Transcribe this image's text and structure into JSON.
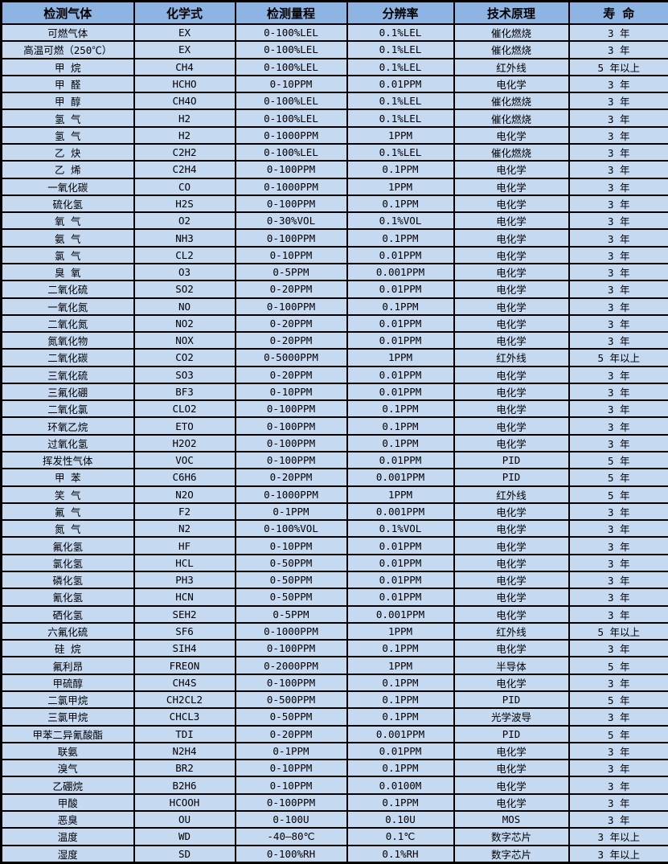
{
  "colors": {
    "header_bg": "#8db4e2",
    "row_bg": "#c5d9f1",
    "border": "#000000",
    "text": "#000000"
  },
  "table": {
    "headers": [
      "检测气体",
      "化学式",
      "检测量程",
      "分辨率",
      "技术原理",
      "寿 命"
    ],
    "rows": [
      {
        "gas": "可燃气体",
        "formula": "EX",
        "range": "0-100%LEL",
        "resolution": "0.1%LEL",
        "principle": "催化燃烧",
        "lifespan": "3 年"
      },
      {
        "gas": "高温可燃（250℃）",
        "formula": "EX",
        "range": "0-100%LEL",
        "resolution": "0.1%LEL",
        "principle": "催化燃烧",
        "lifespan": "3 年"
      },
      {
        "gas": "甲 烷",
        "formula": "CH4",
        "range": "0-100%LEL",
        "resolution": "0.1%LEL",
        "principle": "红外线",
        "lifespan": "5 年以上"
      },
      {
        "gas": "甲 醛",
        "formula": "HCHO",
        "range": "0-10PPM",
        "resolution": "0.01PPM",
        "principle": "电化学",
        "lifespan": "3 年"
      },
      {
        "gas": "甲 醇",
        "formula": "CH4O",
        "range": "0-100%LEL",
        "resolution": "0.1%LEL",
        "principle": "催化燃烧",
        "lifespan": "3 年"
      },
      {
        "gas": "氢 气",
        "formula": "H2",
        "range": "0-100%LEL",
        "resolution": "0.1%LEL",
        "principle": "催化燃烧",
        "lifespan": "3 年"
      },
      {
        "gas": "氢 气",
        "formula": "H2",
        "range": "0-1000PPM",
        "resolution": "1PPM",
        "principle": "电化学",
        "lifespan": "3 年"
      },
      {
        "gas": "乙 炔",
        "formula": "C2H2",
        "range": "0-100%LEL",
        "resolution": "0.1%LEL",
        "principle": "催化燃烧",
        "lifespan": "3 年"
      },
      {
        "gas": "乙 烯",
        "formula": "C2H4",
        "range": "0-100PPM",
        "resolution": "0.1PPM",
        "principle": "电化学",
        "lifespan": "3 年"
      },
      {
        "gas": "一氧化碳",
        "formula": "CO",
        "range": "0-1000PPM",
        "resolution": "1PPM",
        "principle": "电化学",
        "lifespan": "3 年"
      },
      {
        "gas": "硫化氢",
        "formula": "H2S",
        "range": "0-100PPM",
        "resolution": "0.1PPM",
        "principle": "电化学",
        "lifespan": "3 年"
      },
      {
        "gas": "氧 气",
        "formula": "O2",
        "range": "0-30%VOL",
        "resolution": "0.1%VOL",
        "principle": "电化学",
        "lifespan": "3 年"
      },
      {
        "gas": "氨 气",
        "formula": "NH3",
        "range": "0-100PPM",
        "resolution": "0.1PPM",
        "principle": "电化学",
        "lifespan": "3 年"
      },
      {
        "gas": "氯 气",
        "formula": "CL2",
        "range": "0-10PPM",
        "resolution": "0.01PPM",
        "principle": "电化学",
        "lifespan": "3 年"
      },
      {
        "gas": "臭 氧",
        "formula": "O3",
        "range": "0-5PPM",
        "resolution": "0.001PPM",
        "principle": "电化学",
        "lifespan": "3 年"
      },
      {
        "gas": "二氧化硫",
        "formula": "SO2",
        "range": "0-20PPM",
        "resolution": "0.01PPM",
        "principle": "电化学",
        "lifespan": "3 年"
      },
      {
        "gas": "一氧化氮",
        "formula": "NO",
        "range": "0-100PPM",
        "resolution": "0.1PPM",
        "principle": "电化学",
        "lifespan": "3 年"
      },
      {
        "gas": "二氧化氮",
        "formula": "NO2",
        "range": "0-20PPM",
        "resolution": "0.01PPM",
        "principle": "电化学",
        "lifespan": "3 年"
      },
      {
        "gas": "氮氧化物",
        "formula": "NOX",
        "range": "0-20PPM",
        "resolution": "0.01PPM",
        "principle": "电化学",
        "lifespan": "3 年"
      },
      {
        "gas": "二氧化碳",
        "formula": "CO2",
        "range": "0-5000PPM",
        "resolution": "1PPM",
        "principle": "红外线",
        "lifespan": "5 年以上"
      },
      {
        "gas": "三氧化硫",
        "formula": "SO3",
        "range": "0-20PPM",
        "resolution": "0.01PPM",
        "principle": "电化学",
        "lifespan": "3 年"
      },
      {
        "gas": "三氟化硼",
        "formula": "BF3",
        "range": "0-10PPM",
        "resolution": "0.01PPM",
        "principle": "电化学",
        "lifespan": "3 年"
      },
      {
        "gas": "二氧化氯",
        "formula": "CLO2",
        "range": "0-100PPM",
        "resolution": "0.1PPM",
        "principle": "电化学",
        "lifespan": "3 年"
      },
      {
        "gas": "环氧乙烷",
        "formula": "ETO",
        "range": "0-100PPM",
        "resolution": "0.1PPM",
        "principle": "电化学",
        "lifespan": "3 年"
      },
      {
        "gas": "过氧化氢",
        "formula": "H2O2",
        "range": "0-100PPM",
        "resolution": "0.1PPM",
        "principle": "电化学",
        "lifespan": "3 年"
      },
      {
        "gas": "挥发性气体",
        "formula": "VOC",
        "range": "0-100PPM",
        "resolution": "0.01PPM",
        "principle": "PID",
        "lifespan": "5 年"
      },
      {
        "gas": "甲 苯",
        "formula": "C6H6",
        "range": "0-20PPM",
        "resolution": "0.001PPM",
        "principle": "PID",
        "lifespan": "5 年"
      },
      {
        "gas": "笑 气",
        "formula": "N2O",
        "range": "0-1000PPM",
        "resolution": "1PPM",
        "principle": "红外线",
        "lifespan": "5 年"
      },
      {
        "gas": "氟 气",
        "formula": "F2",
        "range": "0-1PPM",
        "resolution": "0.001PPM",
        "principle": "电化学",
        "lifespan": "3 年"
      },
      {
        "gas": "氮 气",
        "formula": "N2",
        "range": "0-100%VOL",
        "resolution": "0.1%VOL",
        "principle": "电化学",
        "lifespan": "3 年"
      },
      {
        "gas": "氟化氢",
        "formula": "HF",
        "range": "0-10PPM",
        "resolution": "0.01PPM",
        "principle": "电化学",
        "lifespan": "3 年"
      },
      {
        "gas": "氯化氢",
        "formula": "HCL",
        "range": "0-50PPM",
        "resolution": "0.01PPM",
        "principle": "电化学",
        "lifespan": "3 年"
      },
      {
        "gas": "磷化氢",
        "formula": "PH3",
        "range": "0-50PPM",
        "resolution": "0.01PPM",
        "principle": "电化学",
        "lifespan": "3 年"
      },
      {
        "gas": "氰化氢",
        "formula": "HCN",
        "range": "0-50PPM",
        "resolution": "0.01PPM",
        "principle": "电化学",
        "lifespan": "3 年"
      },
      {
        "gas": "硒化氢",
        "formula": "SEH2",
        "range": "0-5PPM",
        "resolution": "0.001PPM",
        "principle": "电化学",
        "lifespan": "3 年"
      },
      {
        "gas": "六氟化硫",
        "formula": "SF6",
        "range": "0-1000PPM",
        "resolution": "1PPM",
        "principle": "红外线",
        "lifespan": "5 年以上"
      },
      {
        "gas": "硅 烷",
        "formula": "SIH4",
        "range": "0-100PPM",
        "resolution": "0.1PPM",
        "principle": "电化学",
        "lifespan": "3 年"
      },
      {
        "gas": "氟利昂",
        "formula": "FREON",
        "range": "0-2000PPM",
        "resolution": "1PPM",
        "principle": "半导体",
        "lifespan": "5 年"
      },
      {
        "gas": "甲硫醇",
        "formula": "CH4S",
        "range": "0-100PPM",
        "resolution": "0.1PPM",
        "principle": "电化学",
        "lifespan": "3 年"
      },
      {
        "gas": "二氯甲烷",
        "formula": "CH2CL2",
        "range": "0-500PPM",
        "resolution": "0.1PPM",
        "principle": "PID",
        "lifespan": "5 年"
      },
      {
        "gas": "三氯甲烷",
        "formula": "CHCL3",
        "range": "0-50PPM",
        "resolution": "0.1PPM",
        "principle": "光学波导",
        "lifespan": "3 年"
      },
      {
        "gas": "甲苯二异氰酸酯",
        "formula": "TDI",
        "range": "0-20PPM",
        "resolution": "0.001PPM",
        "principle": "PID",
        "lifespan": "5 年"
      },
      {
        "gas": "联氨",
        "formula": "N2H4",
        "range": "0-1PPM",
        "resolution": "0.01PPM",
        "principle": "电化学",
        "lifespan": "3 年"
      },
      {
        "gas": "溴气",
        "formula": "BR2",
        "range": "0-10PPM",
        "resolution": "0.1PPM",
        "principle": "电化学",
        "lifespan": "3 年"
      },
      {
        "gas": "乙硼烷",
        "formula": "B2H6",
        "range": "0-10PPM",
        "resolution": "0.0100M",
        "principle": "电化学",
        "lifespan": "3 年"
      },
      {
        "gas": "甲酸",
        "formula": "HCOOH",
        "range": "0-100PPM",
        "resolution": "0.1PPM",
        "principle": "电化学",
        "lifespan": "3 年"
      },
      {
        "gas": "恶臭",
        "formula": "OU",
        "range": "0-100U",
        "resolution": "0.10U",
        "principle": "MOS",
        "lifespan": "3 年"
      },
      {
        "gas": "温度",
        "formula": "WD",
        "range": "-40—80℃",
        "resolution": "0.1℃",
        "principle": "数字芯片",
        "lifespan": "3 年以上"
      },
      {
        "gas": "湿度",
        "formula": "SD",
        "range": "0-100%RH",
        "resolution": "0.1%RH",
        "principle": "数字芯片",
        "lifespan": "3 年以上"
      }
    ]
  }
}
